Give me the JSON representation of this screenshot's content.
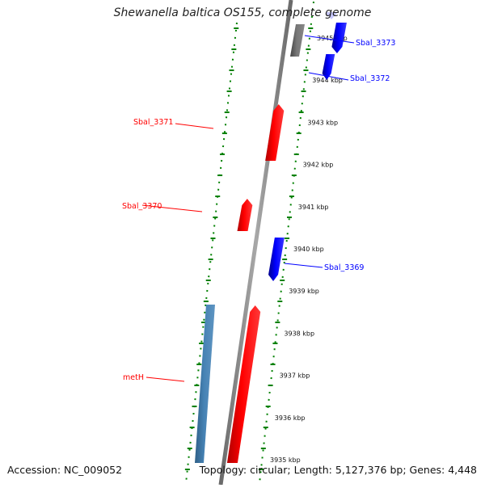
{
  "title": "Shewanella baltica OS155, complete genome",
  "footer": {
    "accession": "Accession: NC_009052",
    "stats": "Topology: circular; Length: 5,127,376 bp; Genes: 4,448"
  },
  "colors": {
    "forward_gene": "#ff0000",
    "reverse_gene": "#0000ff",
    "pseudo_gene": "#4682b4",
    "other_feature": "#666666",
    "scale_ticks": "#008000",
    "backbone": "#808080"
  },
  "scale": {
    "unit": "kbp",
    "ticks": [
      "3945 kbp",
      "3944 kbp",
      "3943 kbp",
      "3942 kbp",
      "3941 kbp",
      "3940 kbp",
      "3939 kbp",
      "3938 kbp",
      "3937 kbp",
      "3936 kbp",
      "3935 kbp"
    ]
  },
  "genes": [
    {
      "label": "Sbal_3373",
      "strand": "reverse",
      "color": "#0000ff"
    },
    {
      "label": "Sbal_3372",
      "strand": "reverse",
      "color": "#0000ff"
    },
    {
      "label": "Sbal_3371",
      "strand": "forward",
      "color": "#ff0000"
    },
    {
      "label": "Sbal_3370",
      "strand": "forward",
      "color": "#ff0000"
    },
    {
      "label": "Sbal_3369",
      "strand": "reverse",
      "color": "#0000ff"
    },
    {
      "label": "metH",
      "strand": "forward",
      "color": "#ff0000"
    }
  ]
}
